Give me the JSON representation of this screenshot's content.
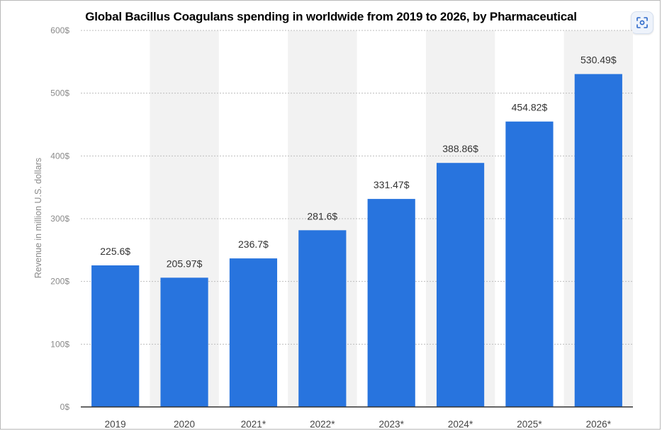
{
  "chart_data": {
    "type": "bar",
    "title": "Global  Bacillus Coagulans spending in worldwide from 2019 to 2026, by Pharmaceutical",
    "xlabel": "",
    "ylabel": "Revenue in million U.S. dollars",
    "categories": [
      "2019",
      "2020",
      "2021*",
      "2022*",
      "2023*",
      "2024*",
      "2025*",
      "2026*"
    ],
    "values": [
      225.6,
      205.97,
      236.7,
      281.6,
      331.47,
      388.86,
      454.82,
      530.49
    ],
    "data_labels": [
      "225.6$",
      "205.97$",
      "236.7$",
      "281.6$",
      "331.47$",
      "388.86$",
      "454.82$",
      "530.49$"
    ],
    "ylim": [
      0,
      600
    ],
    "yticks": [
      0,
      100,
      200,
      300,
      400,
      500,
      600
    ],
    "ytick_labels": [
      "0$",
      "100$",
      "200$",
      "300$",
      "400$",
      "500$",
      "600$"
    ],
    "grid": true,
    "bar_color": "#2874de",
    "column_shading": "#f2f2f2"
  },
  "toolbar": {
    "lens_icon": "lens-scan-icon"
  }
}
